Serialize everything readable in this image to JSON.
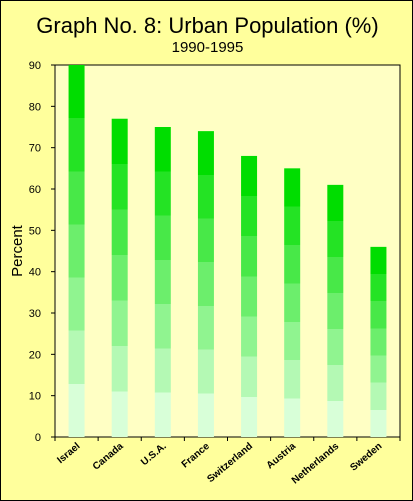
{
  "chart_data": {
    "type": "bar",
    "title": "Graph No. 8: Urban Population (%)",
    "subtitle": "1990-1995",
    "ylabel": "Percent",
    "xlabel": "",
    "categories": [
      "Israel",
      "Canada",
      "U.S.A.",
      "France",
      "Switzerland",
      "Austria",
      "Netherlands",
      "Sweden"
    ],
    "values": [
      90,
      77,
      75,
      74,
      68,
      65,
      61,
      46
    ],
    "ylim": [
      0,
      90
    ],
    "yticks": [
      0,
      10,
      20,
      30,
      40,
      50,
      60,
      70,
      80,
      90
    ],
    "grid": false,
    "legend": "none"
  },
  "colors": {
    "background": "#ffff9c",
    "plot_background": "#ffffc4",
    "bar_top": "#00dd00",
    "bar_bottom": "#d8ffd8"
  }
}
